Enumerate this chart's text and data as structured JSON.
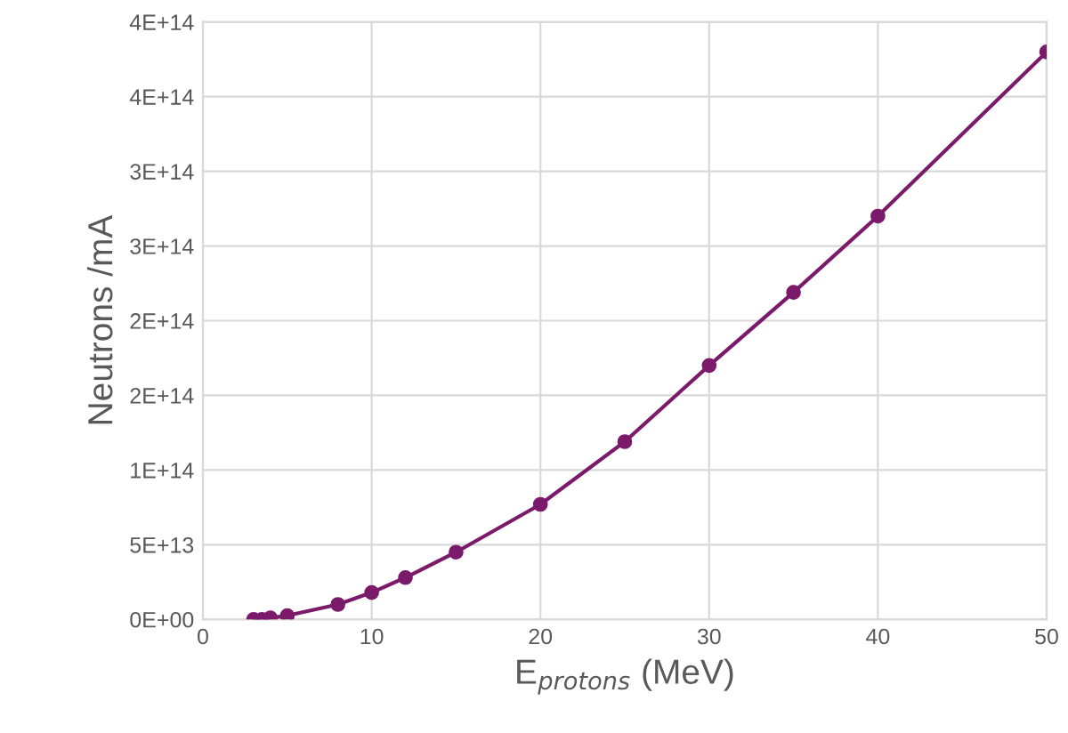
{
  "chart_data": {
    "type": "line",
    "xlabel": "E$_{protons}$ (MeV)",
    "ylabel": "Neutrons /mA",
    "x": [
      3,
      3.5,
      4,
      5,
      8,
      10,
      12,
      15,
      20,
      25,
      30,
      35,
      40,
      50
    ],
    "series": [
      {
        "color": "#7b1a6a",
        "values": [
          0,
          0,
          1000000000000.0,
          2500000000000.0,
          10000000000000.0,
          18000000000000.0,
          28000000000000.0,
          45000000000000.0,
          77000000000000.0,
          119000000000000.0,
          170000000000000.0,
          219000000000000.0,
          270000000000000.0,
          380000000000000.0
        ]
      }
    ],
    "xlim": [
      0,
      50
    ],
    "xticks": [
      0,
      10,
      20,
      30,
      40,
      50
    ],
    "ylim": [
      0,
      400000000000000.0
    ],
    "yticks": [
      {
        "value": 0,
        "label": "0E+00"
      },
      {
        "value": 50000000000000.0,
        "label": "5E+13"
      },
      {
        "value": 100000000000000.0,
        "label": "1E+14"
      },
      {
        "value": 150000000000000.0,
        "label": "2E+14"
      },
      {
        "value": 200000000000000.0,
        "label": "2E+14"
      },
      {
        "value": 250000000000000.0,
        "label": "3E+14"
      },
      {
        "value": 300000000000000.0,
        "label": "3E+14"
      },
      {
        "value": 350000000000000.0,
        "label": "4E+14"
      },
      {
        "value": 400000000000000.0,
        "label": "4E+14"
      }
    ],
    "grid": true,
    "marker": "circle",
    "line_style": "solid",
    "legend": false
  }
}
